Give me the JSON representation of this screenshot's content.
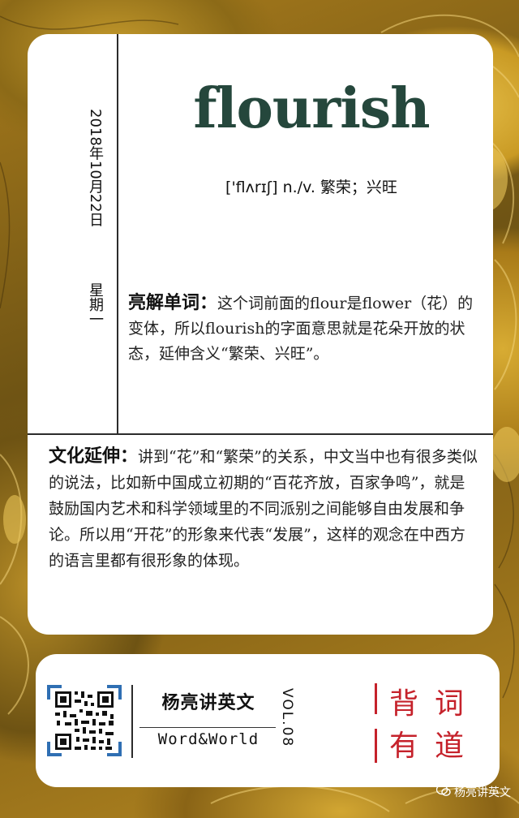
{
  "date": "2018年10月22日",
  "weekday": "星期一",
  "word": "flourish",
  "pronunciation": "['flʌrɪʃ] n./v. 繁荣；兴旺",
  "explain": {
    "label": "亮解单词：",
    "text": "这个词前面的flour是flower（花）的变体，所以flourish的字面意思就是花朵开放的状态，延伸含义“繁荣、兴旺”。"
  },
  "culture": {
    "label": "文化延伸：",
    "text": "讲到“花”和“繁荣”的关系，中文当中也有很多类似的说法，比如新中国成立初期的“百花齐放，百家争鸣”，就是鼓励国内艺术和科学领域里的不同派别之间能够自由发展和争论。所以用“开花”的形象来代表“发展”，这样的观念在中西方的语言里都有很形象的体现。"
  },
  "brand": {
    "cn": "杨亮讲英文",
    "en": "Word&World",
    "vol": "VOL.08"
  },
  "slogan": [
    "背",
    "词",
    "有",
    "道"
  ],
  "watermark": "杨亮讲英文",
  "colors": {
    "word": "#25473c",
    "accent_red": "#c5222b",
    "background_gold": "#b8891f"
  }
}
